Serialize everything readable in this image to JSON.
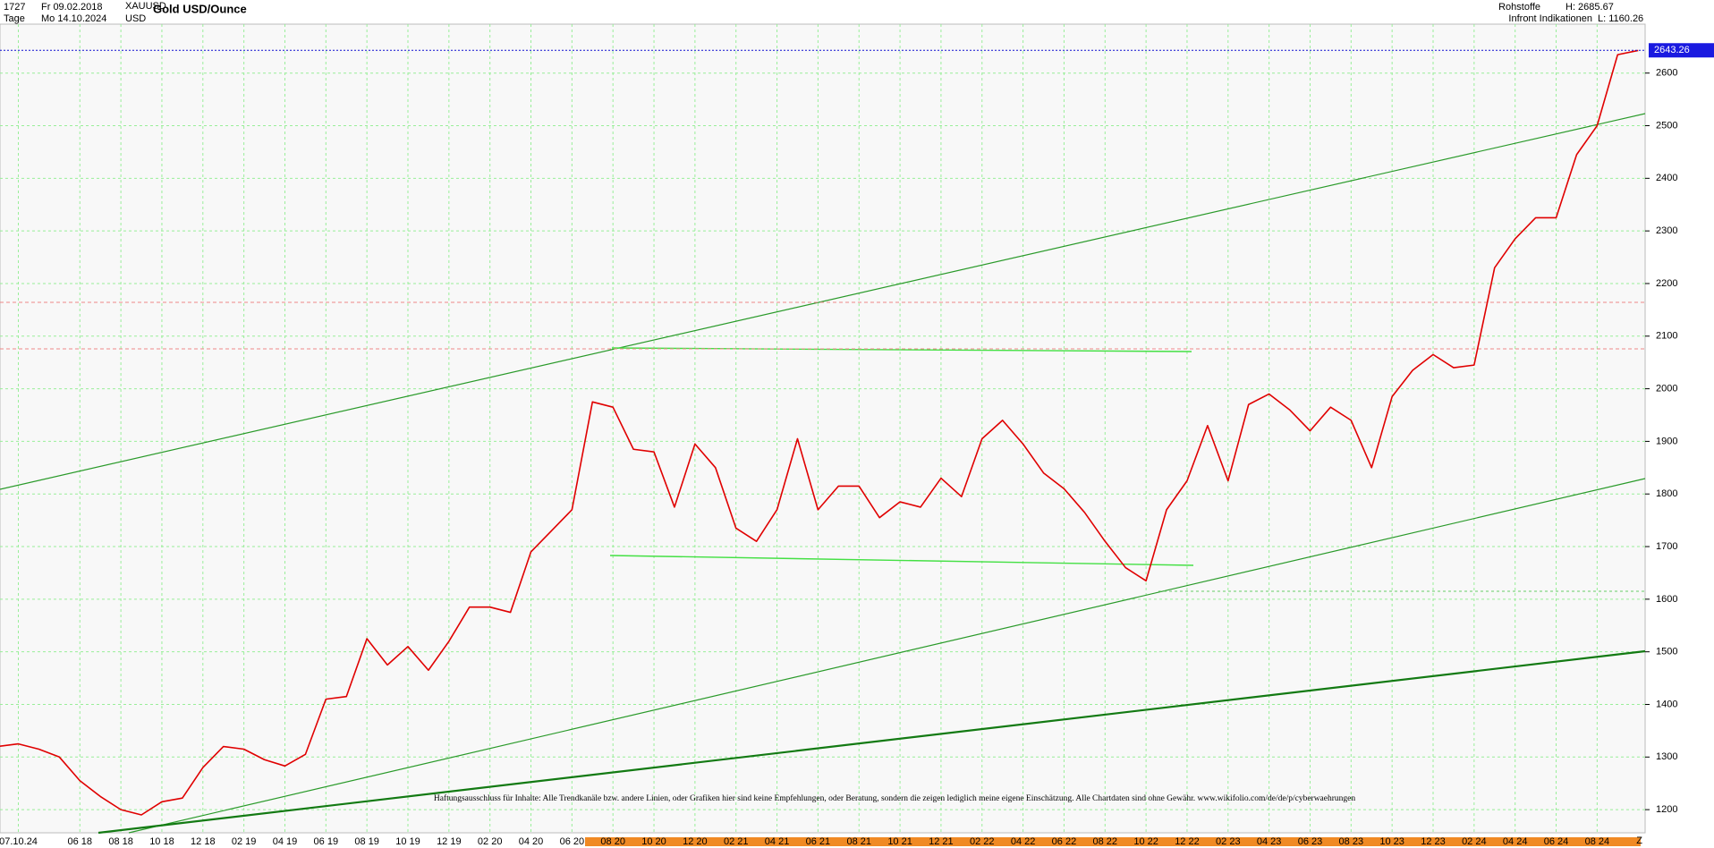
{
  "header": {
    "count": "1727",
    "start": "Fr 09.02.2018",
    "symbol": "XAUUSD",
    "period": "Tage",
    "end": "Mo 14.10.2024",
    "currency": "USD",
    "group": "Rohstoffe",
    "high": "H: 2685.67",
    "source": "Infront Indikationen",
    "low": "L: 1160.26"
  },
  "chart_data": {
    "type": "line",
    "title": "Gold USD/Ounce",
    "color": "#e00000",
    "categories": [
      null,
      "07.10.24",
      null,
      null,
      "06 18",
      null,
      "08 18",
      null,
      "10 18",
      null,
      "12 18",
      null,
      "02 19",
      null,
      "04 19",
      null,
      "06 19",
      null,
      "08 19",
      null,
      "10 19",
      null,
      "12 19",
      null,
      "02 20",
      null,
      "04 20",
      null,
      "06 20",
      null,
      "08 20",
      null,
      "10 20",
      null,
      "12 20",
      null,
      "02 21",
      null,
      "04 21",
      null,
      "06 21",
      null,
      "08 21",
      null,
      "10 21",
      null,
      "12 21",
      null,
      "02 22",
      null,
      "04 22",
      null,
      "06 22",
      null,
      "08 22",
      null,
      "10 22",
      null,
      "12 22",
      null,
      "02 23",
      null,
      "04 23",
      null,
      "06 23",
      null,
      "08 23",
      null,
      "10 23",
      null,
      "12 23",
      null,
      "02 24",
      null,
      "04 24",
      null,
      "06 24",
      null,
      "08 24",
      null,
      null
    ],
    "values": [
      1320,
      1325,
      1315,
      1300,
      1255,
      1225,
      1200,
      1190,
      1215,
      1222,
      1280,
      1320,
      1315,
      1295,
      1283,
      1305,
      1410,
      1415,
      1525,
      1475,
      1510,
      1465,
      1520,
      1585,
      1585,
      1575,
      1690,
      1730,
      1770,
      1975,
      1965,
      1885,
      1880,
      1775,
      1895,
      1850,
      1735,
      1710,
      1770,
      1905,
      1770,
      1815,
      1815,
      1755,
      1785,
      1775,
      1830,
      1795,
      1905,
      1940,
      1895,
      1840,
      1810,
      1765,
      1710,
      1660,
      1635,
      1770,
      1825,
      1930,
      1825,
      1970,
      1990,
      1960,
      1920,
      1965,
      1940,
      1850,
      1985,
      2035,
      2065,
      2040,
      2045,
      2230,
      2285,
      2325,
      2325,
      2445,
      2500,
      2635,
      2643
    ],
    "ylim": [
      1156,
      2693
    ],
    "yticks": [
      1200,
      1300,
      1400,
      1500,
      1600,
      1700,
      1800,
      1900,
      2000,
      2100,
      2200,
      2300,
      2400,
      2500,
      2600
    ],
    "grid": true,
    "last_price": 2643.26,
    "disclaimer": "Haftungsausschluss für Inhalte: Alle Trendkanäle bzw. andere Linien, oder Grafiken hier sind keine Empfehlungen, oder Beratung, sondern die zeigen lediglich meine eigene Einschätzung. Alle Chartdaten sind ohne Gewähr.  www.wikifolio.com/de/de/p/cyberwaehrungen",
    "corner": "Z"
  }
}
